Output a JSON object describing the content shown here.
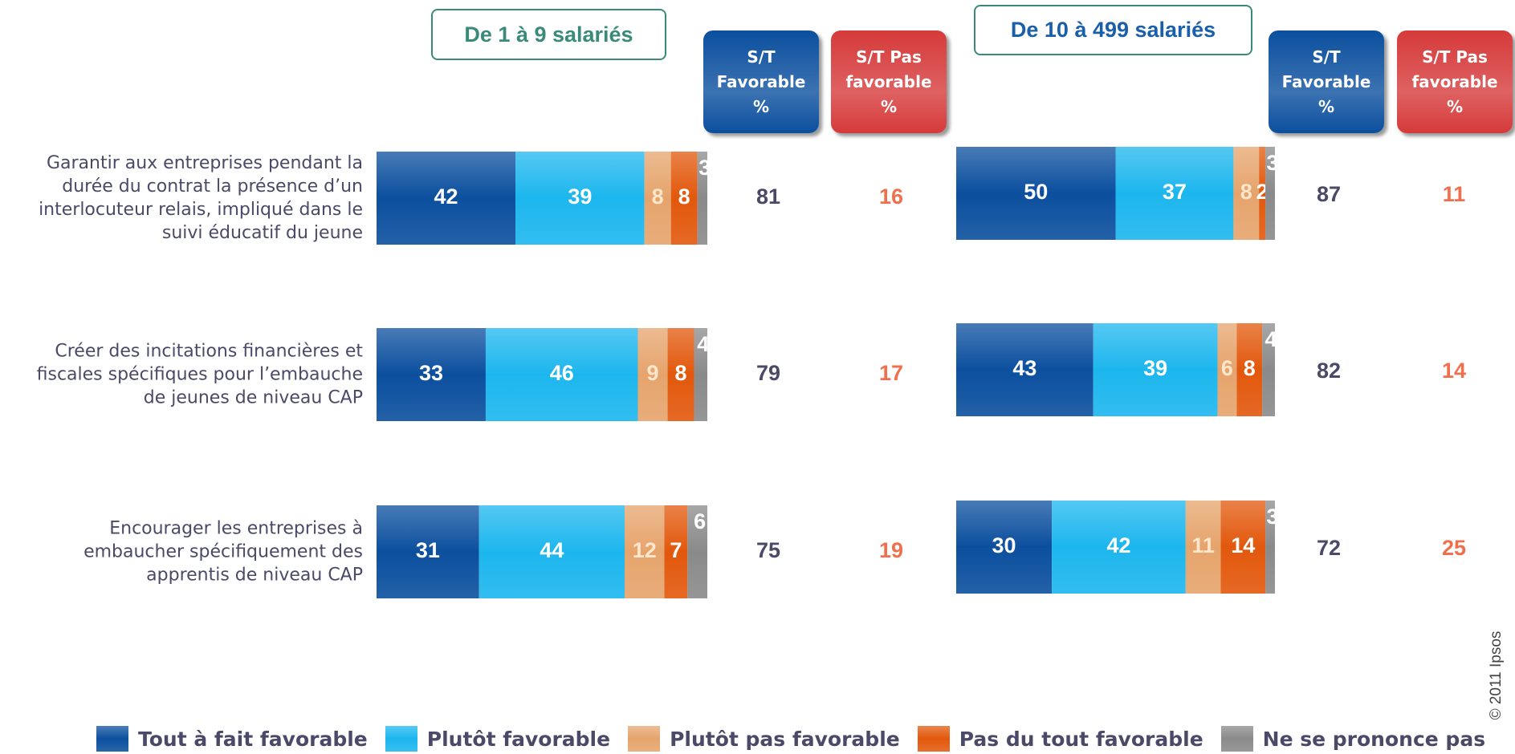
{
  "chart_data": {
    "type": "bar",
    "orientation": "horizontal",
    "stacked": true,
    "xlim": [
      0,
      100
    ],
    "categories": [
      "Garantir aux entreprises pendant la durée du contrat la présence d’un interlocuteur relais, impliqué dans le suivi éducatif du jeune",
      "Créer des incitations financières et fiscales spécifiques pour l’embauche de jeunes de niveau CAP",
      "Encourager les entreprises à embaucher spécifiquement des apprentis de niveau CAP"
    ],
    "series": [
      {
        "name": "Tout à fait favorable",
        "color": "#0b4f9e"
      },
      {
        "name": "Plutôt favorable",
        "color": "#1cb6ee"
      },
      {
        "name": "Plutôt pas favorable",
        "color": "#e6a46c"
      },
      {
        "name": "Pas du tout favorable",
        "color": "#e2580c"
      },
      {
        "name": "Ne se prononce pas",
        "color": "#8a8a8a"
      }
    ],
    "summary_columns": [
      {
        "name": "S/T Favorable %",
        "color": "#0b4f9e",
        "text_color": "#4a4a68"
      },
      {
        "name": "S/T Pas favorable %",
        "color": "#d63a3a",
        "text_color": "#f0704e"
      }
    ],
    "panels": [
      {
        "title": "De 1 à 9 salariés",
        "title_color": "#3a8a7a",
        "series": [
          [
            42,
            33,
            31
          ],
          [
            39,
            46,
            44
          ],
          [
            8,
            9,
            12
          ],
          [
            8,
            8,
            7
          ],
          [
            3,
            4,
            6
          ]
        ],
        "summary": [
          [
            81,
            79,
            75
          ],
          [
            16,
            17,
            19
          ]
        ]
      },
      {
        "title": "De 10 à 499 salariés",
        "title_color": "#1a5fa8",
        "series": [
          [
            50,
            43,
            30
          ],
          [
            37,
            39,
            42
          ],
          [
            8,
            6,
            11
          ],
          [
            2,
            8,
            14
          ],
          [
            3,
            4,
            3
          ]
        ],
        "summary": [
          [
            87,
            82,
            72
          ],
          [
            11,
            14,
            25
          ]
        ]
      }
    ],
    "source": "© 2011 Ipsos"
  }
}
